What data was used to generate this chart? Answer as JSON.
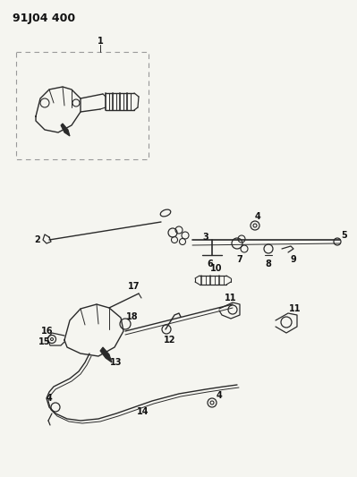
{
  "title_code": "91J04 400",
  "bg": "#f5f5f0",
  "lc": "#2a2a2a",
  "tc": "#111111"
}
